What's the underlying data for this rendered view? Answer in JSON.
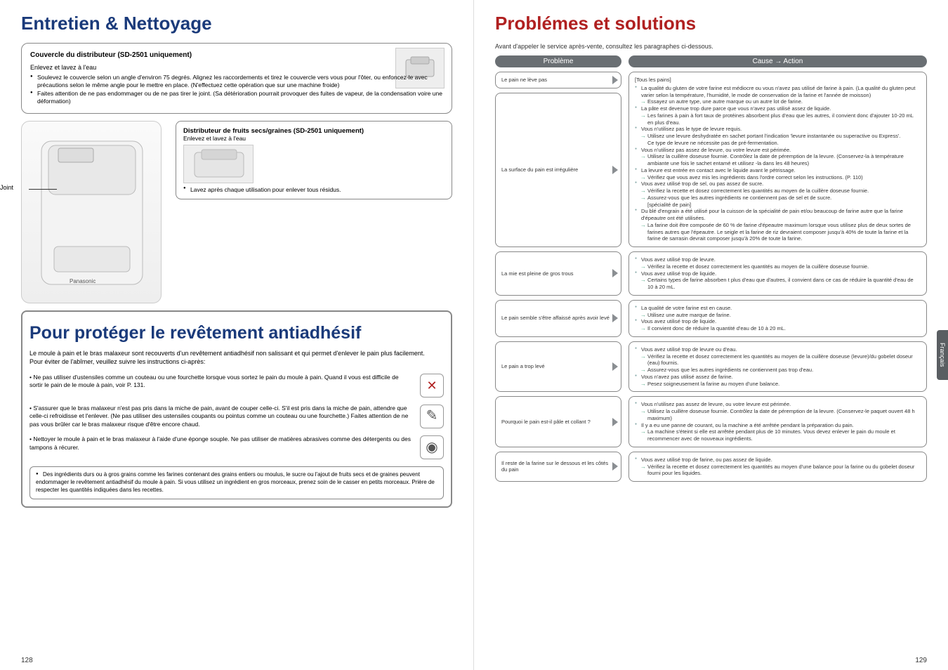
{
  "left": {
    "title": "Entretien & Nettoyage",
    "card1": {
      "title": "Couvercle du distributeur (SD-2501 uniquement)",
      "sub": "Enlevez et lavez à l'eau",
      "b1": "Soulevez le couvercle selon un angle d'environ 75 degrés. Alignez les raccordements et tirez le couvercle vers vous pour l'ôter, ou enfoncez-le avec précautions selon le même angle pour le mettre en place. (N'effectuez cette opération que sur une machine froide)",
      "b2": "Faites attention de ne pas endommager ou de ne pas tirer le joint. (Sa détérioration pourrait provoquer des fuites de vapeur, de la condensation voire une déformation)"
    },
    "joint": "Joint",
    "card2": {
      "title": "Distributeur de fruits secs/graines (SD-2501 uniquement)",
      "sub": "Enlevez et lavez à l'eau",
      "b1": "Lavez après chaque utilisation pour enlever tous résidus."
    },
    "protect": {
      "title": "Pour protéger le revêtement antiadhésif",
      "intro": "Le moule à pain et le bras malaxeur sont recouverts d'un revêtement antiadhésif non salissant et qui permet d'enlever le pain plus facilement.\nPour éviter de l'abîmer, veuillez suivre les instructions ci-après:",
      "t1": "• Ne pas utiliser d'ustensiles comme un couteau ou une fourchette lorsque vous sortez le pain du moule à pain. Quand il vous est difficile de sortir le pain de le moule à pain, voir P. 131.",
      "t2": "• S'assurer que le bras malaxeur n'est pas pris dans la miche de pain, avant de couper celle-ci. S'il est pris dans la miche de pain, attendre que celle-ci refroidisse et l'enlever. (Ne pas utiliser des ustensiles coupants ou pointus comme un couteau ou une fourchette.) Faites attention de ne pas vous brûler car le bras malaxeur risque d'être encore chaud.",
      "t3": "• Nettoyer le moule à pain et le bras malaxeur à l'aide d'une éponge souple. Ne pas utiliser de matières abrasives comme des détergents ou des tampons à récurer.",
      "note": "Des ingrédients durs ou à gros grains comme les farines contenant des grains entiers ou moulus, le sucre ou l'ajout de fruits secs et de graines peuvent endommager le revêtement antiadhésif du moule à pain. Si vous utilisez un ingrédient en gros morceaux, prenez soin de le casser en petits morceaux. Prière de respecter les quantités indiquées dans les recettes."
    },
    "pagenum": "128"
  },
  "right": {
    "title": "Problémes et solutions",
    "subtitle": "Avant d'appeler le service après-vente, consultez les paragraphes ci-dessous.",
    "hdr_prob": "Problème",
    "hdr_act": "Cause → Action",
    "lang": "Français",
    "pagenum": "129",
    "rows": {
      "r1p": "Le pain ne lève pas",
      "r1a_top": "[Tous les pains]",
      "r1a": [
        {
          "b": "La qualité du gluten de votre farine est médiocre ou vous n'avez pas utilisé de farine à pain. (La qualité du gluten peut varier selon la température, l'humidité, le mode de conservation de la farine et l'année de moisson)"
        },
        {
          "ar": "Essayez un autre type, une autre marque ou un autre lot de farine."
        },
        {
          "b": "La pâte est devenue trop dure parce que vous n'avez pas utilisé assez de liquide."
        },
        {
          "ar": "Les farines à pain à fort taux de protéines absorbent plus d'eau que les autres, il convient donc d'ajouter 10-20 mL en plus d'eau."
        },
        {
          "b": "Vous n'utilisez pas le type de levure requis."
        },
        {
          "ar": "Utilisez une levure deshydratée en sachet portant l'indication 'levure instantanée ou superactive ou Express'."
        },
        {
          "t": "Ce type de levure ne nécessite pas de pré-fermentation."
        },
        {
          "b": "Vous n'utilisez pas assez de levure, ou votre levure est périmée."
        },
        {
          "ar": "Utilisez la cuillère doseuse fournie. Contrôlez la date de péremption de la levure. (Conservez-la à température ambiante une fois le sachet entamé et utilisez -la dans les 48 heures)"
        }
      ],
      "r2p": "La surface du pain est irrégulière",
      "r2a": [
        {
          "b": "La levure est entrée en contact avec le liquide avant le pétrissage."
        },
        {
          "ar": "Vérifiez que vous avez mis les ingrédients dans l'ordre correct selon les instructions. (P. 110)"
        },
        {
          "b": "Vous avez utilisé trop de sel, ou pas assez de sucre."
        },
        {
          "ar": "Vérifiez la recette et dosez correctement les quantités au moyen de la cuillère doseuse fournie."
        },
        {
          "ar": "Assurez-vous que les autres ingrédients ne contiennent pas de sel et de sucre."
        },
        {
          "t": "[spécialité de pain]"
        },
        {
          "b": "Du blé d'engrain a été utilisé pour la cuisson de la spécialité de pain et/ou beaucoup de farine autre que la farine d'épeautre ont été utilisées."
        },
        {
          "ar": "La farine doit être composée de 60 % de farine d'épeautre maximum lorsque vous utilisez plus de deux sortes de farines autres que l'épeautre. Le seigle et la farine de riz devraient composer jusqu'à 40% de toute la farine et la farine de sarrasin devrait composer jusqu'à 20% de toute la farine."
        }
      ],
      "r3p": "La mie est pleine de gros trous",
      "r3a": [
        {
          "b": "Vous avez utilisé trop de levure."
        },
        {
          "ar": "Vérifiez la recette et dosez correctement les quantités au moyen de la cuillère doseuse fournie."
        },
        {
          "b": "Vous avez utilisé trop de liquide."
        },
        {
          "ar": "Certains types de farine absorben t plus d'eau que d'autres, il convient dans ce cas de réduire la quantité d'eau de 10 à 20 mL."
        }
      ],
      "r4p": "Le pain semble s'être affaissé après avoir levé",
      "r4a": [
        {
          "b": "La qualité de votre farine est en cause."
        },
        {
          "ar": "Utilisez une autre marque de farine."
        },
        {
          "b": "Vous avez utilisé trop de liquide."
        },
        {
          "ar": "Il convient donc de réduire la quantité d'eau de 10 à 20 mL."
        }
      ],
      "r5p": "Le pain a trop levé",
      "r5a": [
        {
          "b": "Vous avez utilisé trop de levure ou d'eau."
        },
        {
          "ar": "Vérifiez la recette et dosez correctement les quantités au moyen de la cuillère doseuse (levure)/du gobelet doseur (eau) fournis."
        },
        {
          "ar": "Assurez-vous que les autres ingrédients ne contiennent pas trop d'eau."
        },
        {
          "b": "Vous n'avez pas utilisé assez de farine."
        },
        {
          "ar": "Pesez soigneusement la farine au moyen d'une balance."
        }
      ],
      "r6p": "Pourquoi le pain est-il pâle et collant ?",
      "r6a": [
        {
          "b": "Vous n'utilisez pas assez de levure, ou votre levure est périmée."
        },
        {
          "ar": "Utilisez la cuillère doseuse fournie. Contrôlez la date de péremption de la levure. (Conservez-le paquet ouvert 48 h maximum)"
        },
        {
          "b": "Il y a eu une panne de courant, ou la machine a été arrêtée pendant la préparation du pain."
        },
        {
          "ar": "La machine s'éteint si elle est arrêtée pendant plus de 10 minutes. Vous devez enlever le pain du moule et recommencer avec de nouveaux ingrédients."
        }
      ],
      "r7p": "Il reste de la farine sur le dessous et les côtés du pain",
      "r7a": [
        {
          "b": "Vous avez utilisé trop de farine, ou pas assez de liquide."
        },
        {
          "ar": "Vérifiez la recette et dosez correctement les quantités au moyen d'une balance pour la farine ou du gobelet doseur fourni pour les liquides."
        }
      ]
    }
  }
}
